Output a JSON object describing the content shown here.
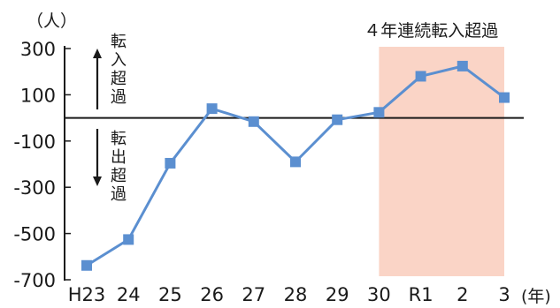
{
  "chart_data": {
    "type": "line",
    "title": "",
    "ylabel": "（人）",
    "xlabel": "(年)",
    "categories": [
      "H23",
      "24",
      "25",
      "26",
      "27",
      "28",
      "29",
      "30",
      "R1",
      "2",
      "3"
    ],
    "series": [
      {
        "values": [
          -638,
          -526,
          -196,
          40,
          -16,
          -190,
          -8,
          24,
          180,
          224,
          88
        ]
      }
    ],
    "ylim": [
      -700,
      300
    ],
    "yticks": [
      300,
      100,
      -100,
      -300,
      -500,
      -700
    ],
    "ytick_labels": [
      "300",
      "100",
      "-100",
      "-300",
      "-500",
      "-700"
    ],
    "highlight": {
      "from": "30",
      "to": "3",
      "label": "４年連続転入超過",
      "color": "#fad4c6"
    },
    "annotations": {
      "up": "転入超過",
      "down": "転出超過"
    },
    "colors": {
      "line": "#5b8fd0",
      "marker": "#5b8fd0",
      "axis": "#1a1a1a"
    },
    "grid": false
  }
}
